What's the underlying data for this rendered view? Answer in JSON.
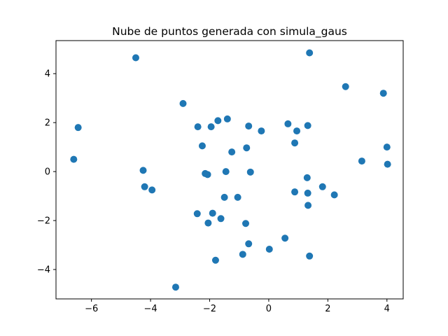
{
  "chart_data": {
    "type": "scatter",
    "title": "Nube de puntos generada con simula_gaus",
    "xlabel": "",
    "ylabel": "",
    "xlim": [
      -7.2,
      4.55
    ],
    "ylim": [
      -5.2,
      5.35
    ],
    "xticks": [
      -6,
      -4,
      -2,
      0,
      2,
      4
    ],
    "yticks": [
      -4,
      -2,
      0,
      2,
      4
    ],
    "xtick_labels": [
      "−6",
      "−4",
      "−2",
      "0",
      "2",
      "4"
    ],
    "ytick_labels": [
      "−4",
      "−2",
      "0",
      "2",
      "4"
    ],
    "grid": false,
    "marker_color": "#1f77b4",
    "points": [
      {
        "x": -6.6,
        "y": 0.5
      },
      {
        "x": -6.45,
        "y": 1.8
      },
      {
        "x": -4.5,
        "y": 4.65
      },
      {
        "x": -4.25,
        "y": 0.05
      },
      {
        "x": -4.2,
        "y": -0.62
      },
      {
        "x": -3.95,
        "y": -0.75
      },
      {
        "x": -3.15,
        "y": -4.72
      },
      {
        "x": -2.9,
        "y": 2.78
      },
      {
        "x": -2.4,
        "y": 1.83
      },
      {
        "x": -2.42,
        "y": -1.72
      },
      {
        "x": -2.25,
        "y": 1.05
      },
      {
        "x": -2.15,
        "y": -0.08
      },
      {
        "x": -2.07,
        "y": -0.12
      },
      {
        "x": -2.05,
        "y": -2.1
      },
      {
        "x": -1.95,
        "y": 1.83
      },
      {
        "x": -1.9,
        "y": -1.7
      },
      {
        "x": -1.8,
        "y": -3.62
      },
      {
        "x": -1.72,
        "y": 2.08
      },
      {
        "x": -1.62,
        "y": -1.92
      },
      {
        "x": -1.5,
        "y": -1.05
      },
      {
        "x": -1.45,
        "y": 0.0
      },
      {
        "x": -1.4,
        "y": 2.15
      },
      {
        "x": -1.25,
        "y": 0.8
      },
      {
        "x": -1.05,
        "y": -1.05
      },
      {
        "x": -0.88,
        "y": -3.38
      },
      {
        "x": -0.78,
        "y": -2.12
      },
      {
        "x": -0.75,
        "y": 0.97
      },
      {
        "x": -0.68,
        "y": 1.86
      },
      {
        "x": -0.68,
        "y": -2.95
      },
      {
        "x": -0.62,
        "y": -0.02
      },
      {
        "x": -0.25,
        "y": 1.66
      },
      {
        "x": 0.02,
        "y": -3.17
      },
      {
        "x": 0.55,
        "y": -2.72
      },
      {
        "x": 0.65,
        "y": 1.95
      },
      {
        "x": 0.88,
        "y": -0.83
      },
      {
        "x": 0.88,
        "y": 1.17
      },
      {
        "x": 0.95,
        "y": 1.66
      },
      {
        "x": 1.3,
        "y": -0.25
      },
      {
        "x": 1.32,
        "y": 1.88
      },
      {
        "x": 1.32,
        "y": -0.88
      },
      {
        "x": 1.33,
        "y": -1.38
      },
      {
        "x": 1.38,
        "y": 4.85
      },
      {
        "x": 1.38,
        "y": -3.45
      },
      {
        "x": 1.82,
        "y": -0.62
      },
      {
        "x": 2.22,
        "y": -0.95
      },
      {
        "x": 2.6,
        "y": 3.47
      },
      {
        "x": 3.15,
        "y": 0.43
      },
      {
        "x": 3.88,
        "y": 3.2
      },
      {
        "x": 4.0,
        "y": 1.0
      },
      {
        "x": 4.02,
        "y": 0.3
      }
    ]
  }
}
